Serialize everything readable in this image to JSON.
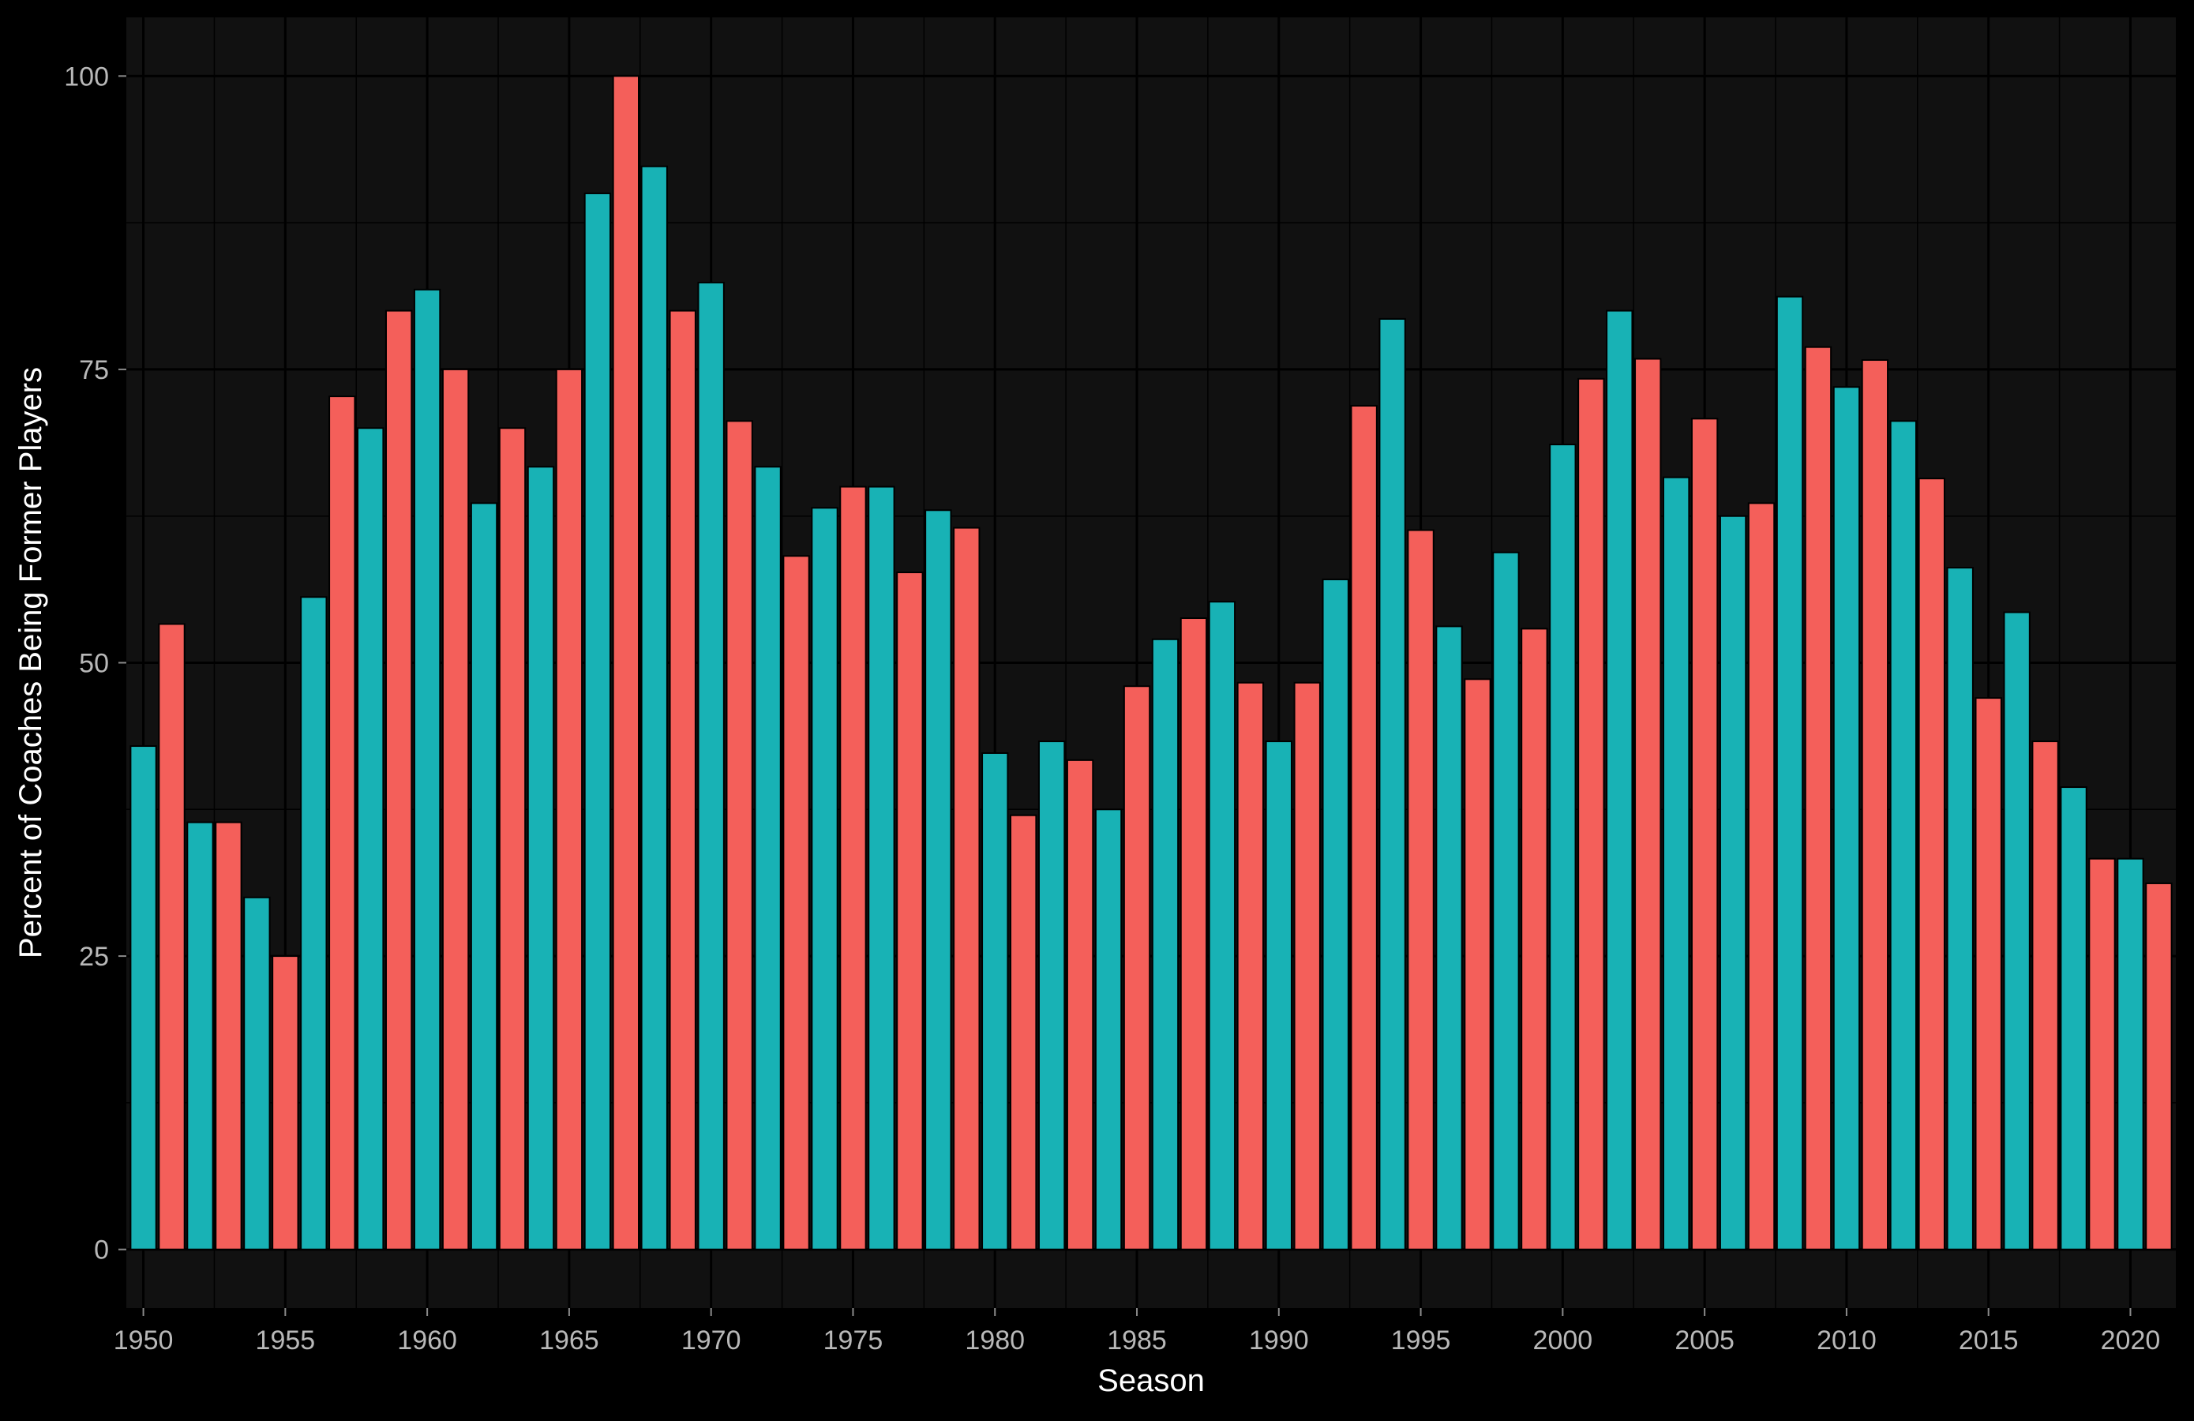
{
  "colors": {
    "page_background": "#000000",
    "panel_background": "#111111",
    "grid": "#000000",
    "tick_label": "#b8b8b8",
    "axis_title": "#ffffff",
    "bar_teal": "#18b2b5",
    "bar_coral": "#f45f5a",
    "bar_outline": "#000000"
  },
  "chart_data": {
    "type": "bar",
    "title": "",
    "xlabel": "Season",
    "ylabel": "Percent of Coaches Being Former Players",
    "xlim": [
      1949.4,
      2021.6
    ],
    "ylim": [
      -5,
      105
    ],
    "x_ticks": [
      1950,
      1955,
      1960,
      1965,
      1970,
      1975,
      1980,
      1985,
      1990,
      1995,
      2000,
      2005,
      2010,
      2015,
      2020
    ],
    "x_tick_labels": [
      "1950",
      "1955",
      "1960",
      "1965",
      "1970",
      "1975",
      "1980",
      "1985",
      "1990",
      "1995",
      "2000",
      "2005",
      "2010",
      "2015",
      "2020"
    ],
    "y_ticks": [
      0,
      25,
      50,
      75,
      100
    ],
    "y_tick_labels": [
      "0",
      "25",
      "50",
      "75",
      "100"
    ],
    "grid": true,
    "legend": "none",
    "bar_colors_alternate": [
      "#18b2b5",
      "#f45f5a"
    ],
    "x": [
      1950,
      1951,
      1952,
      1953,
      1954,
      1955,
      1956,
      1957,
      1958,
      1959,
      1960,
      1961,
      1962,
      1963,
      1964,
      1965,
      1966,
      1967,
      1968,
      1969,
      1970,
      1971,
      1972,
      1973,
      1974,
      1975,
      1976,
      1977,
      1978,
      1979,
      1980,
      1981,
      1982,
      1983,
      1984,
      1985,
      1986,
      1987,
      1988,
      1989,
      1990,
      1991,
      1992,
      1993,
      1994,
      1995,
      1996,
      1997,
      1998,
      1999,
      2000,
      2001,
      2002,
      2003,
      2004,
      2005,
      2006,
      2007,
      2008,
      2009,
      2010,
      2011,
      2012,
      2013,
      2014,
      2015,
      2016,
      2017,
      2018,
      2019,
      2020,
      2021
    ],
    "values": [
      42.9,
      53.3,
      36.4,
      36.4,
      30.0,
      25.0,
      55.6,
      72.7,
      70.0,
      80.0,
      81.8,
      75.0,
      63.6,
      70.0,
      66.7,
      75.0,
      90.0,
      100.0,
      92.3,
      80.0,
      82.4,
      70.6,
      66.7,
      59.1,
      63.2,
      65.0,
      65.0,
      57.7,
      63.0,
      61.5,
      42.3,
      37.0,
      43.3,
      41.7,
      37.5,
      48.0,
      52.0,
      53.8,
      55.2,
      48.3,
      43.3,
      48.3,
      57.1,
      71.9,
      79.3,
      61.3,
      53.1,
      48.6,
      59.4,
      52.9,
      68.6,
      74.2,
      80.0,
      75.9,
      65.8,
      70.8,
      62.5,
      63.6,
      81.2,
      76.9,
      73.5,
      75.8,
      70.6,
      65.7,
      58.1,
      47.0,
      54.3,
      43.3,
      39.4,
      33.3,
      33.3,
      31.2
    ]
  }
}
